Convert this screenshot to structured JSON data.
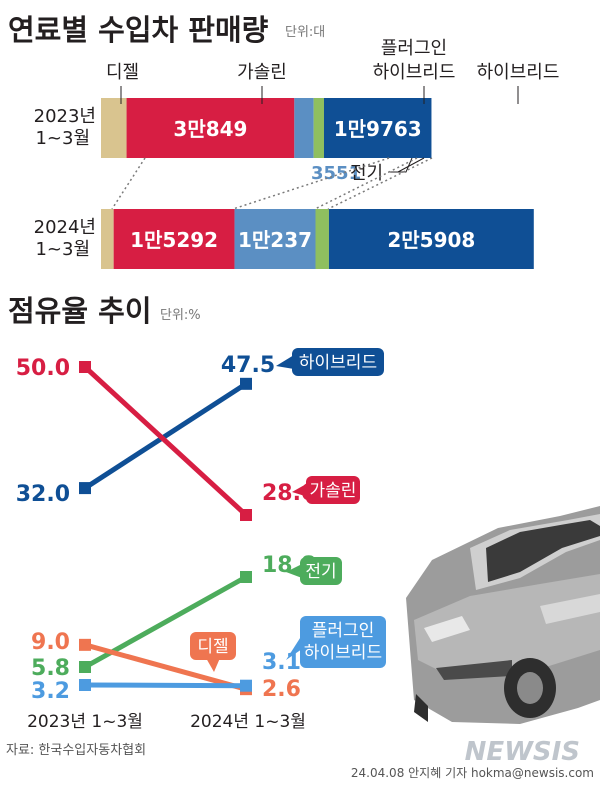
{
  "header": {
    "title": "연료별 수입차 판매량",
    "unit": "단위:대"
  },
  "bar_labels": {
    "top_diesel": "디젤",
    "top_gasoline": "가솔린",
    "top_phev_line1": "플러그인",
    "top_phev_line2": "하이브리드",
    "top_hybrid": "하이브리드",
    "ev_value": "3551",
    "ev_name": "전기"
  },
  "share_header": {
    "title": "점유율 추이",
    "unit": "단위:%"
  },
  "source": "자료: 한국수입자동차협회",
  "credit": "24.04.08 안지혜 기자 hokma@newsis.com",
  "watermark": "NEWSIS",
  "colors": {
    "diesel": "#d9c48f",
    "gasoline": "#d71e43",
    "ev": "#5b8fc3",
    "phev": "#8fbf5f",
    "hybrid": "#0f4f95",
    "share_diesel": "#ef7550",
    "share_ev": "#4dac5c",
    "share_phev": "#4d9be0"
  },
  "chart_data": [
    {
      "type": "bar",
      "orientation": "horizontal",
      "stacked": true,
      "title": "연료별 수입차 판매량",
      "unit": "단위:대",
      "categories": [
        "2023년 1~3월",
        "2024년 1~3월"
      ],
      "series": [
        {
          "name": "디젤",
          "values": [
            null,
            null
          ],
          "labels": [
            "",
            ""
          ],
          "color": "#d9c48f",
          "approx_values": [
            4700,
            1600
          ]
        },
        {
          "name": "가솔린",
          "values": [
            30849,
            15292
          ],
          "labels": [
            "3만849",
            "1만5292"
          ],
          "color": "#d71e43"
        },
        {
          "name": "전기",
          "values": [
            3551,
            10237
          ],
          "labels": [
            "3551",
            "1만237"
          ],
          "color": "#5b8fc3"
        },
        {
          "name": "플러그인 하이브리드",
          "values": [
            null,
            null
          ],
          "labels": [
            "",
            ""
          ],
          "color": "#8fbf5f",
          "approx_values": [
            1900,
            1700
          ]
        },
        {
          "name": "하이브리드",
          "values": [
            19763,
            25908
          ],
          "labels": [
            "1만9763",
            "2만5908"
          ],
          "color": "#0f4f95"
        }
      ]
    },
    {
      "type": "line",
      "title": "점유율 추이",
      "unit": "단위:%",
      "x": [
        "2023년 1~3월",
        "2024년 1~3월"
      ],
      "series": [
        {
          "name": "하이브리드",
          "values": [
            32.0,
            47.5
          ],
          "labels": [
            "32.0",
            "47.5"
          ],
          "color": "#0f4f95"
        },
        {
          "name": "가솔린",
          "values": [
            50.0,
            28.0
          ],
          "labels": [
            "50.0",
            "28.0"
          ],
          "color": "#d71e43"
        },
        {
          "name": "전기",
          "values": [
            5.8,
            18.8
          ],
          "labels": [
            "5.8",
            "18.8"
          ],
          "color": "#4dac5c"
        },
        {
          "name": "디젤",
          "values": [
            9.0,
            2.6
          ],
          "labels": [
            "9.0",
            "2.6"
          ],
          "color": "#ef7550"
        },
        {
          "name": "플러그인 하이브리드",
          "values": [
            3.2,
            3.1
          ],
          "labels": [
            "3.2",
            "3.1"
          ],
          "color": "#4d9be0"
        }
      ]
    }
  ]
}
